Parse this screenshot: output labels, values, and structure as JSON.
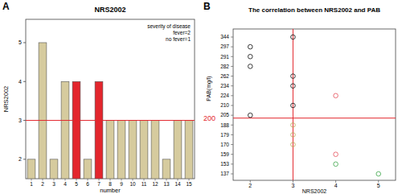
{
  "chart_data": [
    {
      "type": "bar",
      "panel_label": "A",
      "title": "NRS2002",
      "x_label": "number",
      "y_label": "NRS2002",
      "categories": [
        "1",
        "2",
        "3",
        "4",
        "5",
        "6",
        "7",
        "8",
        "9",
        "10",
        "11",
        "12",
        "13",
        "14",
        "15"
      ],
      "values": [
        2,
        5,
        2,
        4,
        4,
        2,
        4,
        3,
        3,
        3,
        3,
        3,
        2,
        3,
        3
      ],
      "colors": [
        "#d6cb9e",
        "#d6cb9e",
        "#d6cb9e",
        "#d6cb9e",
        "#e3262d",
        "#d6cb9e",
        "#e3262d",
        "#d6cb9e",
        "#d6cb9e",
        "#d6cb9e",
        "#d6cb9e",
        "#d6cb9e",
        "#d6cb9e",
        "#d6cb9e",
        "#d6cb9e"
      ],
      "ylim": [
        1.5,
        5.6
      ],
      "yticks": [
        2,
        3,
        4,
        5
      ],
      "reference_lines": [
        {
          "axis": "y",
          "value": 3
        }
      ],
      "annotations": [
        "severity of disease",
        "fever=2",
        "no fever=1"
      ]
    },
    {
      "type": "scatter",
      "panel_label": "B",
      "title": "The correlation between NRS2002 and PAB",
      "x_label": "NRS2002",
      "y_label": "PAB(mg/l)",
      "x": [
        2,
        2,
        2,
        2,
        3,
        3,
        3,
        3,
        3,
        3,
        3,
        4,
        4,
        4,
        5
      ],
      "values": [
        297,
        291,
        282,
        205,
        344,
        262,
        234,
        210,
        188,
        179,
        170,
        224,
        159,
        153,
        137
      ],
      "colors": [
        "#222222",
        "#222222",
        "#222222",
        "#222222",
        "#222222",
        "#222222",
        "#222222",
        "#222222",
        "#c2ad62",
        "#c2ad62",
        "#c2ad62",
        "#e8606a",
        "#e8606a",
        "#4fae5a",
        "#4fae5a"
      ],
      "marker": "open_circle",
      "xlim": [
        1.6,
        5.4
      ],
      "xticks": [
        2,
        3,
        4,
        5
      ],
      "ylim": [
        137,
        344
      ],
      "yticks": [
        344,
        297,
        291,
        282,
        262,
        234,
        224,
        210,
        205,
        188,
        179,
        170,
        159,
        153,
        137
      ],
      "reference_lines": [
        {
          "axis": "x",
          "value": 3
        },
        {
          "axis": "y",
          "value": 200,
          "label": "200"
        }
      ]
    }
  ]
}
